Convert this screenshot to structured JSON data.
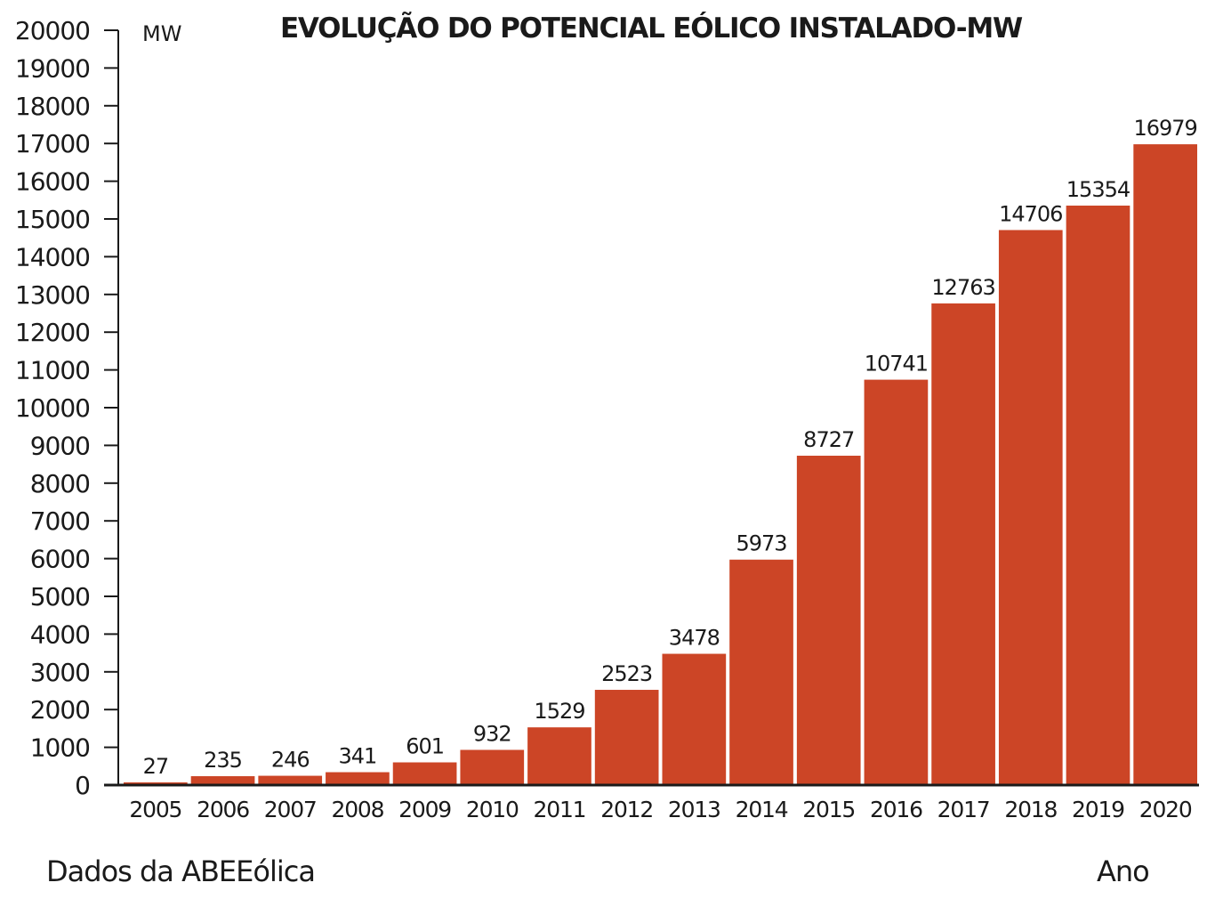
{
  "chart_data": {
    "type": "bar",
    "title": "EVOLUÇÃO DO POTENCIAL EÓLICO INSTALADO-MW",
    "ylabel": "MW",
    "xlabel": "Ano",
    "source": "Dados da ABEEólica",
    "categories": [
      "2005",
      "2006",
      "2007",
      "2008",
      "2009",
      "2010",
      "2011",
      "2012",
      "2013",
      "2014",
      "2015",
      "2016",
      "2017",
      "2018",
      "2019",
      "2020"
    ],
    "values": [
      27,
      235,
      246,
      341,
      601,
      932,
      1529,
      2523,
      3478,
      5973,
      8727,
      10741,
      12763,
      14706,
      15354,
      16979
    ],
    "ylim": [
      0,
      20000
    ],
    "yticks": [
      0,
      1000,
      2000,
      3000,
      4000,
      5000,
      6000,
      7000,
      8000,
      9000,
      10000,
      11000,
      12000,
      13000,
      14000,
      15000,
      16000,
      17000,
      18000,
      19000,
      20000
    ],
    "bar_color": "#cc4526",
    "grid": false,
    "legend": "none"
  }
}
